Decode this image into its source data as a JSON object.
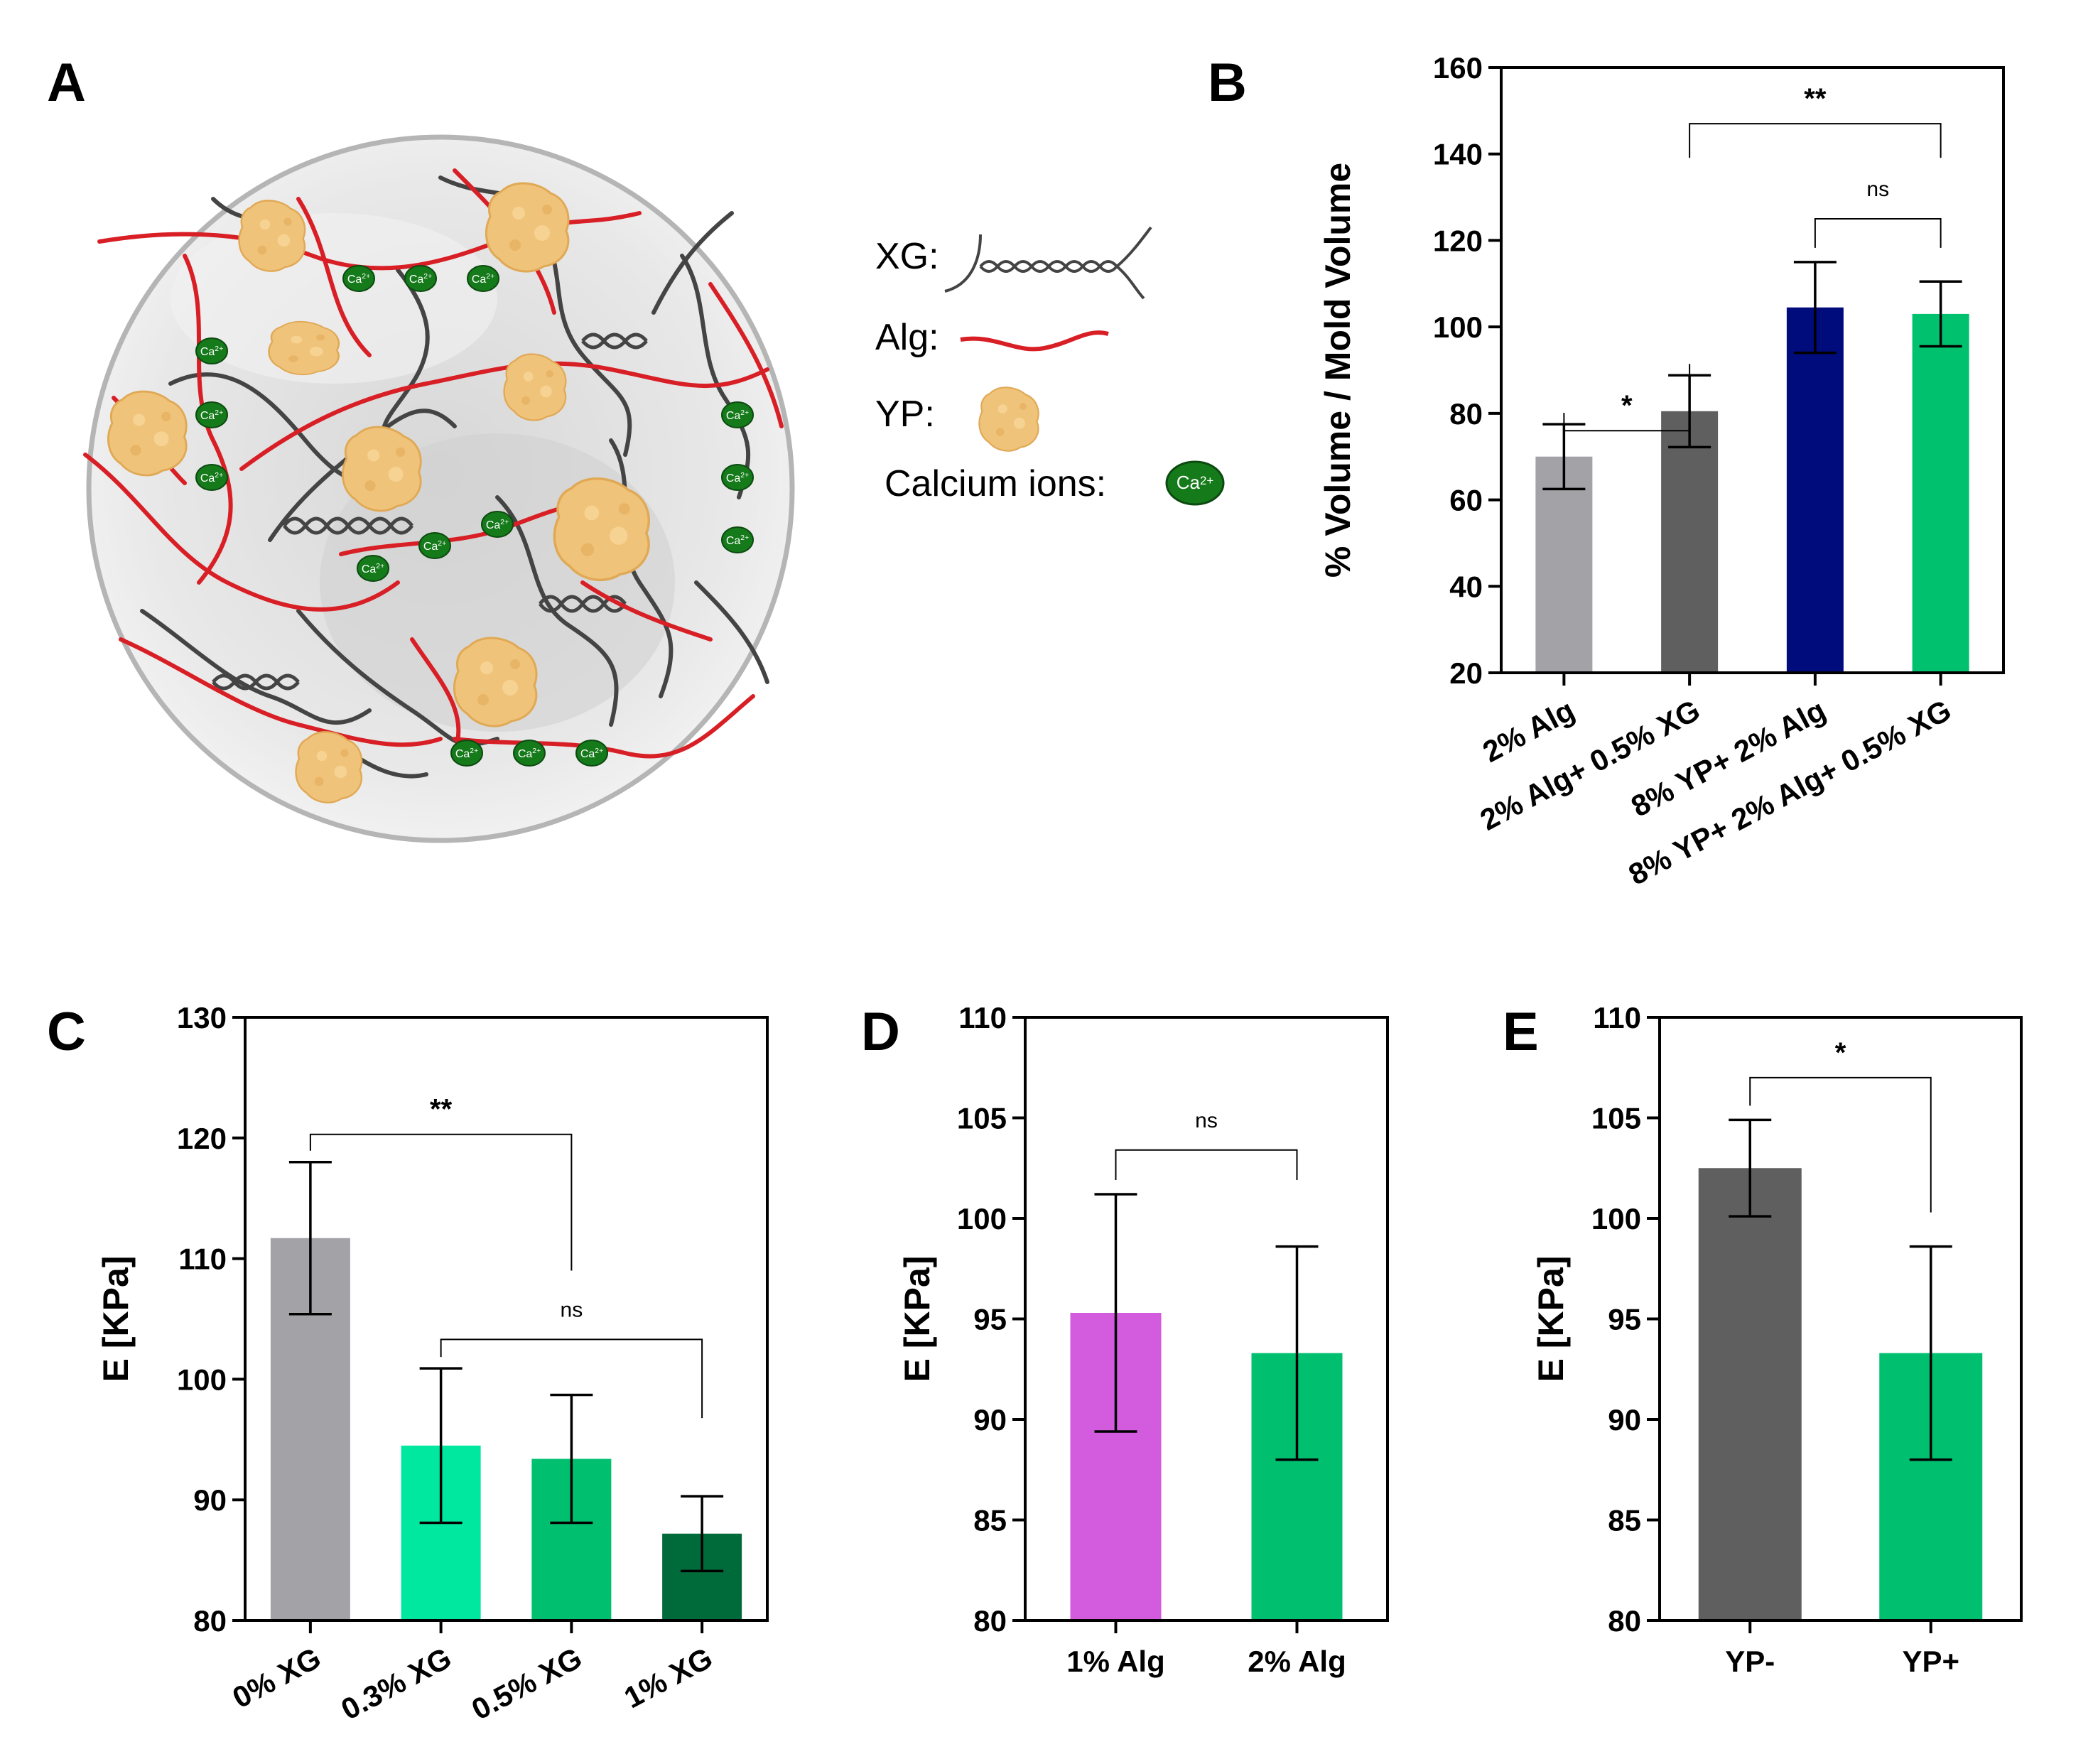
{
  "panels": {
    "A": "A",
    "B": "B",
    "C": "C",
    "D": "D",
    "E": "E"
  },
  "legend": {
    "xg": "XG:",
    "alg": "Alg:",
    "yp": "YP:",
    "calcium": "Calcium ions:",
    "ca_symbol": "Ca2+"
  },
  "colors": {
    "alg_red": "#d81f26",
    "xg_gray": "#444444",
    "yp_tan": "#f0c37a",
    "ca_green": "#157a1a"
  },
  "chart_data": [
    {
      "id": "B",
      "type": "bar",
      "ylabel": "% Volume / Mold Volume",
      "ylim": [
        20,
        160
      ],
      "yticks": [
        20,
        40,
        60,
        80,
        100,
        120,
        140,
        160
      ],
      "categories": [
        "2% Alg",
        "2% Alg+ 0.5% XG",
        "8% YP+ 2% Alg",
        "8% YP+ 2% Alg+ 0.5% XG"
      ],
      "values": [
        70,
        80.5,
        104.5,
        103
      ],
      "errors": [
        7.5,
        8.3,
        10.5,
        7.5
      ],
      "colors": [
        "#a3a3a7",
        "#5f5f5f",
        "#000c7b",
        "#00c26e"
      ],
      "significance": [
        {
          "from": 0,
          "to": 1,
          "label": "*",
          "y": 76
        },
        {
          "from": 2,
          "to": 3,
          "label": "ns",
          "y": 125
        },
        {
          "from": 1,
          "to": 3,
          "label": "**",
          "y": 147
        }
      ]
    },
    {
      "id": "C",
      "type": "bar",
      "ylabel": "E [KPa]",
      "ylim": [
        80,
        130
      ],
      "yticks": [
        80,
        90,
        100,
        110,
        120,
        130
      ],
      "categories": [
        "0% XG",
        "0.3% XG",
        "0.5% XG",
        "1% XG"
      ],
      "values": [
        111.7,
        94.5,
        93.4,
        87.2
      ],
      "errors": [
        6.3,
        6.4,
        5.3,
        3.1
      ],
      "colors": [
        "#a3a3a7",
        "#00e8a0",
        "#00c070",
        "#006b3a"
      ],
      "significance": [
        {
          "from": 0,
          "to": 2,
          "label": "**",
          "y": 120.3
        },
        {
          "from": 1,
          "to": 3,
          "label": "ns",
          "y": 103.3
        }
      ]
    },
    {
      "id": "D",
      "type": "bar",
      "ylabel": "E [KPa]",
      "ylim": [
        80,
        110
      ],
      "yticks": [
        80,
        85,
        90,
        95,
        100,
        105,
        110
      ],
      "categories": [
        "1% Alg",
        "2% Alg"
      ],
      "values": [
        95.3,
        93.3
      ],
      "errors": [
        5.9,
        5.3
      ],
      "colors": [
        "#d35bde",
        "#00c070"
      ],
      "significance": [
        {
          "from": 0,
          "to": 1,
          "label": "ns",
          "y": 103.4
        }
      ]
    },
    {
      "id": "E",
      "type": "bar",
      "ylabel": "E [KPa]",
      "ylim": [
        80,
        110
      ],
      "yticks": [
        80,
        85,
        90,
        95,
        100,
        105,
        110
      ],
      "categories": [
        "YP-",
        "YP+"
      ],
      "values": [
        102.5,
        93.3
      ],
      "errors": [
        2.4,
        5.3
      ],
      "colors": [
        "#5f5f5f",
        "#00c070"
      ],
      "significance": [
        {
          "from": 0,
          "to": 1,
          "label": "*",
          "y": 107
        }
      ]
    }
  ]
}
